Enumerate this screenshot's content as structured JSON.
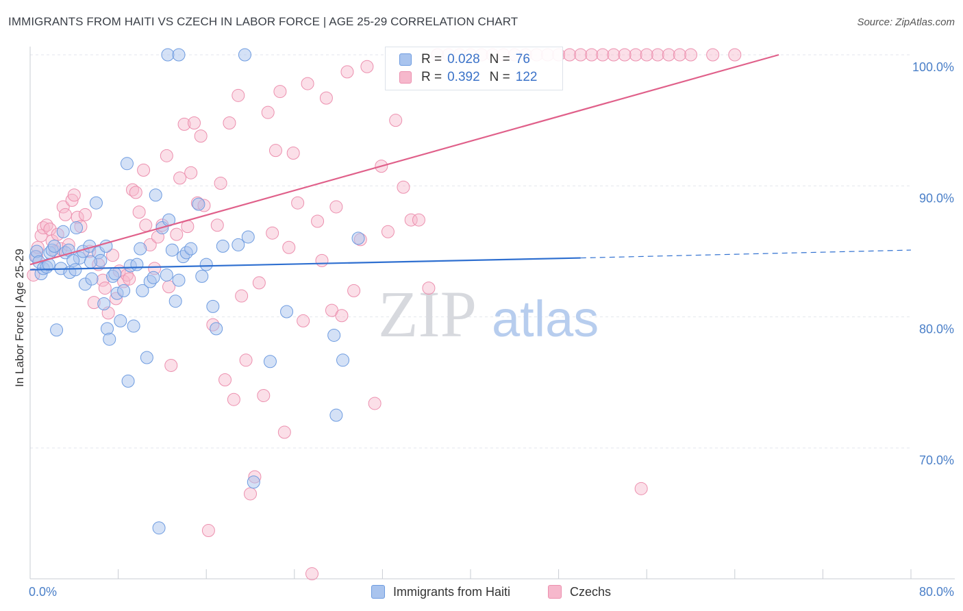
{
  "header": {
    "title": "IMMIGRANTS FROM HAITI VS CZECH IN LABOR FORCE | AGE 25-29 CORRELATION CHART",
    "source": "Source: ZipAtlas.com"
  },
  "legend": {
    "series1": {
      "r_label": "R =",
      "r_value": "0.028",
      "n_label": "N =",
      "n_value": "76"
    },
    "series2": {
      "r_label": "R =",
      "r_value": "0.392",
      "n_label": "N =",
      "n_value": "122"
    }
  },
  "bottom_legend": {
    "series1": "Immigrants from Haiti",
    "series2": "Czechs"
  },
  "watermark": {
    "zip": "ZIP",
    "atlas": "atlas"
  },
  "colors": {
    "haiti_fill": "#a9c4ee",
    "haiti_stroke": "#6d9be0",
    "haiti_line": "#2e6fd0",
    "czech_fill": "#f6b8cc",
    "czech_stroke": "#ec8fae",
    "czech_line": "#e0608a",
    "grid": "#e3e6ec",
    "tick_text": "#4a7fc8"
  },
  "chart_data": {
    "type": "scatter",
    "title": "IMMIGRANTS FROM HAITI VS CZECH IN LABOR FORCE | AGE 25-29 CORRELATION CHART",
    "xlabel": "",
    "ylabel": "In Labor Force | Age 25-29",
    "xlim": [
      0,
      80
    ],
    "ylim": [
      60,
      101
    ],
    "x_tick_labels": [
      "0.0%",
      "80.0%"
    ],
    "y_ticks": [
      70,
      80,
      90,
      100
    ],
    "y_tick_labels": [
      "70.0%",
      "80.0%",
      "90.0%",
      "100.0%"
    ],
    "grid": true,
    "legend_position": "top-center",
    "series": [
      {
        "name": "Immigrants from Haiti",
        "r": 0.028,
        "n": 76,
        "trend": {
          "x0": 0,
          "y0": 83.6,
          "x1": 50,
          "y1": 84.5,
          "dashed_to_x": 80,
          "dashed_to_y": 85.1
        },
        "points": [
          [
            0.5,
            84.6
          ],
          [
            0.6,
            85.0
          ],
          [
            0.8,
            84.2
          ],
          [
            1.0,
            83.3
          ],
          [
            1.2,
            83.7
          ],
          [
            1.5,
            83.8
          ],
          [
            1.7,
            84.0
          ],
          [
            1.8,
            84.9
          ],
          [
            2.0,
            85.1
          ],
          [
            2.2,
            85.4
          ],
          [
            2.8,
            83.7
          ],
          [
            3.0,
            86.5
          ],
          [
            3.2,
            84.9
          ],
          [
            3.5,
            85.1
          ],
          [
            3.6,
            83.4
          ],
          [
            4.2,
            86.8
          ],
          [
            4.5,
            84.5
          ],
          [
            4.8,
            85.0
          ],
          [
            5.0,
            82.5
          ],
          [
            5.4,
            85.4
          ],
          [
            5.6,
            82.9
          ],
          [
            6.0,
            88.7
          ],
          [
            6.2,
            84.9
          ],
          [
            6.4,
            84.3
          ],
          [
            6.7,
            81.0
          ],
          [
            7.0,
            79.1
          ],
          [
            7.2,
            78.3
          ],
          [
            7.5,
            83.1
          ],
          [
            7.7,
            83.3
          ],
          [
            7.9,
            81.8
          ],
          [
            8.2,
            79.7
          ],
          [
            8.5,
            82.0
          ],
          [
            8.8,
            91.7
          ],
          [
            8.9,
            75.1
          ],
          [
            9.1,
            83.9
          ],
          [
            9.4,
            79.3
          ],
          [
            9.7,
            84.0
          ],
          [
            10.0,
            85.2
          ],
          [
            10.2,
            82.0
          ],
          [
            10.6,
            76.9
          ],
          [
            10.9,
            82.7
          ],
          [
            11.2,
            83.0
          ],
          [
            11.4,
            89.3
          ],
          [
            11.7,
            63.9
          ],
          [
            12.0,
            86.8
          ],
          [
            12.4,
            83.2
          ],
          [
            12.6,
            87.4
          ],
          [
            12.9,
            85.1
          ],
          [
            13.2,
            81.2
          ],
          [
            13.5,
            82.8
          ],
          [
            13.9,
            84.6
          ],
          [
            14.2,
            84.9
          ],
          [
            14.6,
            85.2
          ],
          [
            15.3,
            88.6
          ],
          [
            15.6,
            83.1
          ],
          [
            16.0,
            84.0
          ],
          [
            16.6,
            80.8
          ],
          [
            16.9,
            79.1
          ],
          [
            17.5,
            85.4
          ],
          [
            18.9,
            85.5
          ],
          [
            19.8,
            86.1
          ],
          [
            20.3,
            67.4
          ],
          [
            21.8,
            76.6
          ],
          [
            23.3,
            80.4
          ],
          [
            27.6,
            78.6
          ],
          [
            27.8,
            72.5
          ],
          [
            28.4,
            76.7
          ],
          [
            29.8,
            86.0
          ],
          [
            12.5,
            100.0
          ],
          [
            13.5,
            100.0
          ],
          [
            19.5,
            100.0
          ],
          [
            5.5,
            84.2
          ],
          [
            3.9,
            84.3
          ],
          [
            2.4,
            79.0
          ],
          [
            6.9,
            85.4
          ],
          [
            4.1,
            83.6
          ]
        ]
      },
      {
        "name": "Czechs",
        "r": 0.392,
        "n": 122,
        "trend": {
          "x0": 0,
          "y0": 84.0,
          "x1": 68,
          "y1": 100.0
        },
        "points": [
          [
            0.3,
            83.2
          ],
          [
            0.6,
            84.6
          ],
          [
            0.7,
            85.3
          ],
          [
            1.0,
            86.2
          ],
          [
            1.2,
            86.8
          ],
          [
            1.5,
            87.0
          ],
          [
            1.8,
            86.7
          ],
          [
            2.0,
            85.8
          ],
          [
            2.3,
            85.0
          ],
          [
            2.5,
            86.3
          ],
          [
            2.8,
            85.2
          ],
          [
            3.0,
            88.4
          ],
          [
            3.2,
            87.8
          ],
          [
            3.5,
            85.5
          ],
          [
            3.8,
            88.9
          ],
          [
            4.0,
            89.3
          ],
          [
            4.3,
            87.6
          ],
          [
            4.6,
            86.9
          ],
          [
            5.0,
            87.8
          ],
          [
            5.4,
            85.0
          ],
          [
            5.8,
            81.1
          ],
          [
            6.2,
            84.0
          ],
          [
            6.6,
            82.8
          ],
          [
            6.8,
            82.2
          ],
          [
            7.1,
            80.3
          ],
          [
            7.5,
            84.7
          ],
          [
            7.8,
            81.4
          ],
          [
            8.1,
            83.5
          ],
          [
            8.5,
            82.7
          ],
          [
            8.8,
            83.2
          ],
          [
            9.0,
            82.9
          ],
          [
            9.3,
            89.7
          ],
          [
            9.6,
            89.5
          ],
          [
            9.9,
            88.0
          ],
          [
            10.3,
            91.2
          ],
          [
            10.5,
            87.0
          ],
          [
            10.9,
            85.5
          ],
          [
            11.3,
            83.7
          ],
          [
            11.6,
            86.1
          ],
          [
            12.0,
            87.0
          ],
          [
            12.4,
            92.3
          ],
          [
            12.6,
            82.3
          ],
          [
            12.8,
            76.3
          ],
          [
            13.3,
            86.3
          ],
          [
            13.6,
            90.6
          ],
          [
            14.0,
            94.7
          ],
          [
            14.3,
            86.9
          ],
          [
            14.6,
            91.0
          ],
          [
            14.9,
            94.8
          ],
          [
            15.2,
            88.7
          ],
          [
            15.5,
            93.8
          ],
          [
            15.8,
            88.5
          ],
          [
            16.2,
            63.7
          ],
          [
            16.6,
            79.4
          ],
          [
            17.0,
            87.0
          ],
          [
            17.3,
            90.2
          ],
          [
            17.7,
            75.2
          ],
          [
            18.1,
            94.8
          ],
          [
            18.5,
            73.7
          ],
          [
            18.9,
            96.9
          ],
          [
            19.2,
            81.6
          ],
          [
            19.6,
            76.7
          ],
          [
            20.0,
            66.5
          ],
          [
            20.4,
            67.8
          ],
          [
            20.8,
            82.6
          ],
          [
            21.2,
            74.0
          ],
          [
            21.6,
            95.6
          ],
          [
            22.0,
            86.4
          ],
          [
            22.3,
            92.7
          ],
          [
            22.7,
            97.2
          ],
          [
            23.1,
            71.2
          ],
          [
            23.5,
            85.3
          ],
          [
            23.9,
            92.5
          ],
          [
            24.3,
            88.7
          ],
          [
            24.8,
            79.7
          ],
          [
            25.2,
            97.8
          ],
          [
            25.6,
            60.4
          ],
          [
            26.1,
            87.3
          ],
          [
            26.5,
            84.3
          ],
          [
            26.9,
            96.7
          ],
          [
            27.4,
            80.5
          ],
          [
            27.8,
            88.4
          ],
          [
            28.3,
            80.1
          ],
          [
            28.8,
            98.7
          ],
          [
            29.4,
            82.0
          ],
          [
            30.0,
            85.9
          ],
          [
            30.6,
            99.1
          ],
          [
            31.3,
            73.4
          ],
          [
            31.9,
            91.5
          ],
          [
            32.5,
            86.5
          ],
          [
            33.2,
            95.0
          ],
          [
            33.9,
            89.9
          ],
          [
            34.6,
            87.4
          ],
          [
            35.3,
            87.4
          ],
          [
            36.2,
            82.2
          ],
          [
            37.0,
            100.0
          ],
          [
            38.0,
            100.0
          ],
          [
            39.0,
            100.0
          ],
          [
            40.0,
            100.0
          ],
          [
            41.0,
            100.0
          ],
          [
            42.0,
            100.0
          ],
          [
            43.0,
            100.0
          ],
          [
            44.0,
            100.0
          ],
          [
            45.0,
            100.0
          ],
          [
            46.0,
            100.0
          ],
          [
            47.0,
            100.0
          ],
          [
            48.0,
            100.0
          ],
          [
            49.0,
            100.0
          ],
          [
            50.0,
            100.0
          ],
          [
            51.0,
            100.0
          ],
          [
            52.0,
            100.0
          ],
          [
            53.0,
            100.0
          ],
          [
            55.0,
            100.0
          ],
          [
            57.0,
            100.0
          ],
          [
            60.0,
            100.0
          ],
          [
            62.0,
            100.0
          ],
          [
            64.0,
            100.0
          ],
          [
            58.0,
            100.0
          ],
          [
            54.0,
            100.0
          ],
          [
            56.0,
            100.0
          ],
          [
            59.0,
            100.0
          ],
          [
            55.5,
            66.9
          ]
        ]
      }
    ]
  }
}
